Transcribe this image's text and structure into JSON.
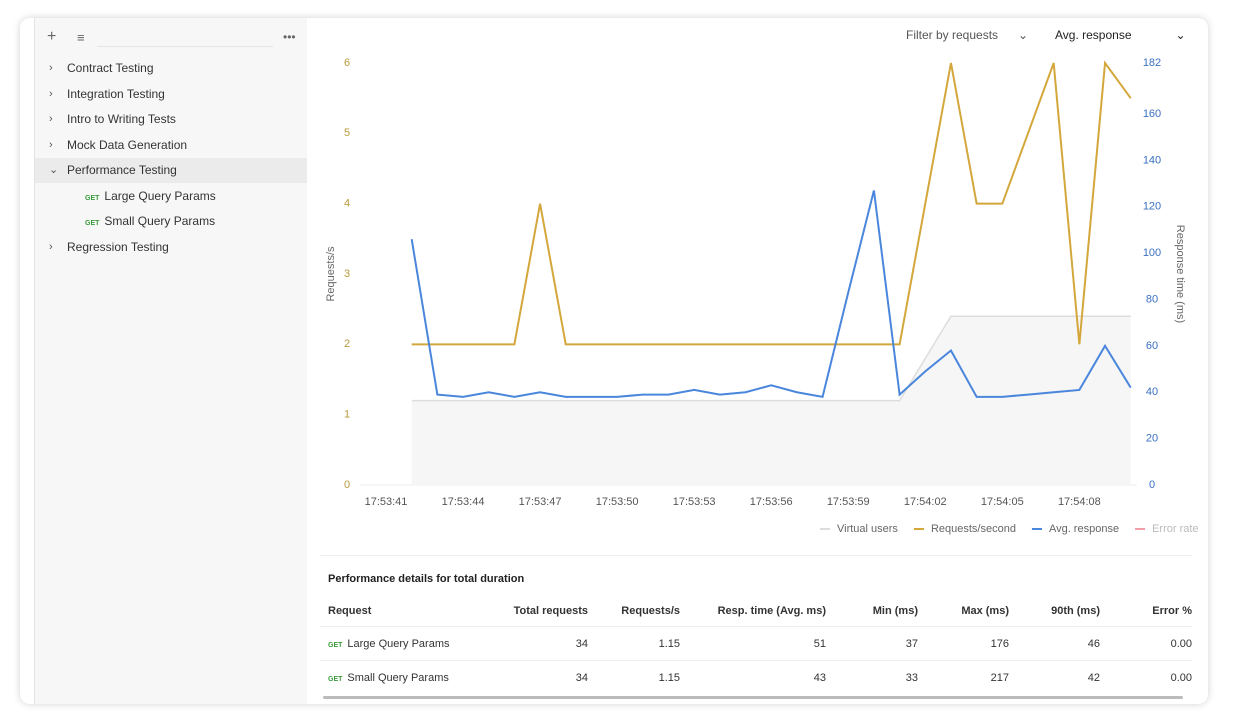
{
  "sidebar": {
    "items": [
      {
        "label": "Contract Testing",
        "open": false
      },
      {
        "label": "Integration Testing",
        "open": false
      },
      {
        "label": "Intro to Writing Tests",
        "open": false
      },
      {
        "label": "Mock Data Generation",
        "open": false
      },
      {
        "label": "Performance Testing",
        "open": true,
        "children": [
          {
            "method": "GET",
            "label": "Large Query Params"
          },
          {
            "method": "GET",
            "label": "Small Query Params"
          }
        ]
      },
      {
        "label": "Regression Testing",
        "open": false
      }
    ]
  },
  "filters": {
    "requests": "Filter by requests",
    "metric": "Avg. response"
  },
  "chart": {
    "type": "line",
    "ylabel": "Requests/s",
    "y2label": "Response time (ms)",
    "categories": [
      "17:53:41",
      null,
      null,
      "17:53:44",
      null,
      null,
      "17:53:47",
      null,
      null,
      "17:53:50",
      null,
      null,
      "17:53:53",
      null,
      null,
      "17:53:56",
      null,
      null,
      "17:53:59",
      null,
      null,
      "17:54:02",
      null,
      null,
      "17:54:05",
      null,
      null,
      "17:54:08",
      null,
      null
    ],
    "ylim": [
      0,
      6
    ],
    "yticks": [
      0,
      1,
      2,
      3,
      4,
      5,
      6
    ],
    "y2lim": [
      0,
      182
    ],
    "y2ticks": [
      0,
      20,
      40,
      60,
      80,
      100,
      120,
      140,
      160,
      182
    ],
    "series": [
      {
        "name": "Virtual users",
        "color": "#dddddd",
        "values": [
          null,
          1.2,
          1.2,
          1.2,
          1.2,
          1.2,
          1.2,
          1.2,
          1.2,
          1.2,
          1.2,
          1.2,
          1.2,
          1.2,
          1.2,
          1.2,
          1.2,
          1.2,
          1.2,
          1.2,
          1.2,
          1.8,
          2.4,
          2.4,
          2.4,
          2.4,
          2.4,
          2.4,
          2.4,
          2.4
        ]
      },
      {
        "name": "Requests/second",
        "color": "#d4a73c",
        "values": [
          null,
          2,
          2,
          2,
          2,
          2,
          4,
          2,
          2,
          2,
          2,
          2,
          2,
          2,
          2,
          2,
          2,
          2,
          2,
          2,
          2,
          4,
          6,
          4,
          4,
          5,
          6,
          2,
          6,
          5.5
        ]
      },
      {
        "name": "Avg. response",
        "color": "#4a86dc",
        "axis": "y2",
        "values": [
          null,
          106,
          39,
          38,
          40,
          38,
          40,
          38,
          38,
          38,
          39,
          39,
          41,
          39,
          40,
          43,
          40,
          38,
          83,
          127,
          39,
          49,
          58,
          38,
          38,
          39,
          40,
          41,
          60,
          42
        ]
      },
      {
        "name": "Error rate",
        "color": "#f0a0a8"
      }
    ]
  },
  "table": {
    "title": "Performance details for total duration",
    "headers": [
      "Request",
      "Total requests",
      "Requests/s",
      "Resp. time (Avg. ms)",
      "Min (ms)",
      "Max (ms)",
      "90th (ms)",
      "Error %"
    ],
    "rows": [
      {
        "method": "GET",
        "cells": [
          "Large Query Params",
          "34",
          "1.15",
          "51",
          "37",
          "176",
          "46",
          "0.00"
        ]
      },
      {
        "method": "GET",
        "cells": [
          "Small Query Params",
          "34",
          "1.15",
          "43",
          "33",
          "217",
          "42",
          "0.00"
        ]
      }
    ]
  }
}
